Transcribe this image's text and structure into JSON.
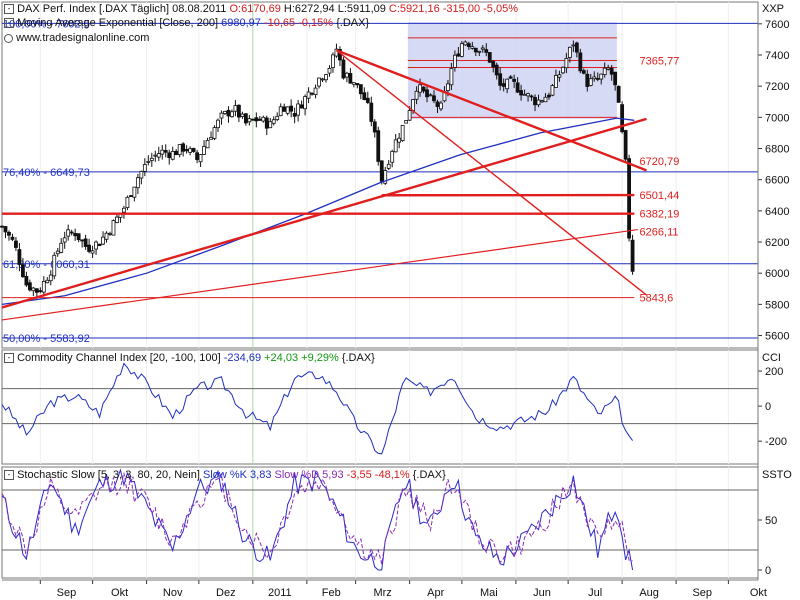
{
  "header": {
    "line1": {
      "name": "DAX Perf. Index [.DAX  Täglich]",
      "date": "08.08.2011",
      "o": "O:6170,69",
      "h": "H:6272,94",
      "l": "L:5911,09",
      "c": "C:5921,16",
      "chg": "-315,00",
      "pct": "-5,05%"
    },
    "line2": {
      "name": "Moving Average Exponential [Close, 200]",
      "val": "6980,97",
      "chg": "-10,65",
      "pct": "-0,15%",
      "sym": "{.DAX}"
    },
    "line3": "www.tradesignalonline.com",
    "axis_title": "XXP"
  },
  "cci_header": {
    "name": "Commodity Channel Index [20, -100, 100]",
    "val": "-234,69",
    "chg": "+24,03",
    "pct": "+9,29%",
    "sym": "{.DAX}",
    "axis_title": "CCI"
  },
  "stoch_header": {
    "name": "Stochastic Slow [5, 3, 3, 80, 20, Nein]",
    "k": "Slow %K 3,83",
    "d": "Slow %D 5,93",
    "chg": "-3,55",
    "pct": "-48,1%",
    "sym": "{.DAX}",
    "axis_title": "SSTO"
  },
  "colors": {
    "price": "#111111",
    "ema": "#1f2fbf",
    "trend": "#e01e1e",
    "fib": "#1f2fbf",
    "box": "#c8cdf2",
    "cci": "#1f2fbf",
    "stoch_k": "#2a2acc",
    "stoch_d": "#8a2bb8"
  },
  "chart_data": [
    {
      "type": "candlestick",
      "x": {
        "start": "2010-08-10",
        "end": "2011-10-18",
        "tick_labels": [
          "Sep",
          "Okt",
          "Nov",
          "Dez",
          "2011",
          "Feb",
          "Mrz",
          "Apr",
          "Mai",
          "Jun",
          "Jul",
          "Aug",
          "Sep",
          "Okt"
        ]
      },
      "ylim": [
        5520,
        7740
      ],
      "yticks": [
        5600,
        5800,
        6000,
        6200,
        6400,
        6600,
        6800,
        7000,
        7200,
        7400,
        7600
      ],
      "close_path": [
        [
          "2010-08-10",
          6300
        ],
        [
          "2010-08-17",
          6190
        ],
        [
          "2010-08-24",
          5930
        ],
        [
          "2010-08-31",
          5880
        ],
        [
          "2010-09-07",
          6020
        ],
        [
          "2010-09-14",
          6240
        ],
        [
          "2010-09-21",
          6260
        ],
        [
          "2010-09-28",
          6160
        ],
        [
          "2010-10-05",
          6200
        ],
        [
          "2010-10-12",
          6300
        ],
        [
          "2010-10-19",
          6420
        ],
        [
          "2010-10-26",
          6600
        ],
        [
          "2010-11-02",
          6720
        ],
        [
          "2010-11-09",
          6780
        ],
        [
          "2010-11-16",
          6770
        ],
        [
          "2010-11-23",
          6810
        ],
        [
          "2010-11-30",
          6730
        ],
        [
          "2010-12-07",
          6880
        ],
        [
          "2010-12-14",
          7000
        ],
        [
          "2010-12-21",
          7060
        ],
        [
          "2010-12-28",
          6960
        ],
        [
          "2011-01-04",
          6990
        ],
        [
          "2011-01-11",
          6950
        ],
        [
          "2011-01-18",
          7080
        ],
        [
          "2011-01-25",
          7030
        ],
        [
          "2011-02-01",
          7140
        ],
        [
          "2011-02-08",
          7250
        ],
        [
          "2011-02-15",
          7340
        ],
        [
          "2011-02-18",
          7440
        ],
        [
          "2011-02-22",
          7280
        ],
        [
          "2011-02-28",
          7230
        ],
        [
          "2011-03-07",
          7100
        ],
        [
          "2011-03-11",
          6950
        ],
        [
          "2011-03-16",
          6600
        ],
        [
          "2011-03-22",
          6800
        ],
        [
          "2011-03-29",
          6960
        ],
        [
          "2011-04-05",
          7200
        ],
        [
          "2011-04-12",
          7120
        ],
        [
          "2011-04-19",
          7060
        ],
        [
          "2011-04-26",
          7350
        ],
        [
          "2011-05-02",
          7500
        ],
        [
          "2011-05-09",
          7450
        ],
        [
          "2011-05-16",
          7400
        ],
        [
          "2011-05-23",
          7200
        ],
        [
          "2011-05-30",
          7220
        ],
        [
          "2011-06-06",
          7150
        ],
        [
          "2011-06-13",
          7100
        ],
        [
          "2011-06-20",
          7150
        ],
        [
          "2011-06-27",
          7300
        ],
        [
          "2011-07-04",
          7480
        ],
        [
          "2011-07-11",
          7220
        ],
        [
          "2011-07-18",
          7240
        ],
        [
          "2011-07-25",
          7320
        ],
        [
          "2011-07-29",
          7150
        ],
        [
          "2011-08-02",
          6800
        ],
        [
          "2011-08-04",
          6600
        ],
        [
          "2011-08-05",
          6240
        ],
        [
          "2011-08-08",
          5921
        ]
      ],
      "ema_path": [
        [
          "2010-08-10",
          5800
        ],
        [
          "2010-09-15",
          5855
        ],
        [
          "2010-11-01",
          6000
        ],
        [
          "2010-12-15",
          6180
        ],
        [
          "2011-01-31",
          6380
        ],
        [
          "2011-03-15",
          6580
        ],
        [
          "2011-04-30",
          6760
        ],
        [
          "2011-06-15",
          6900
        ],
        [
          "2011-07-29",
          6995
        ],
        [
          "2011-08-08",
          6981
        ]
      ],
      "fib_levels": [
        {
          "label": "100,00% - 7602,5",
          "value": 7602.5
        },
        {
          "label": "76,40% - 6649,73",
          "value": 6649.73
        },
        {
          "label": "61,80% - 6060,31",
          "value": 6060.31
        },
        {
          "label": "50,00% - 5583,92",
          "value": 5583.92
        }
      ],
      "price_labels": [
        {
          "label": "7365,77",
          "value": 7365.77
        },
        {
          "label": "6720,79",
          "value": 6720.79
        },
        {
          "label": "6501,44",
          "value": 6501.44
        },
        {
          "label": "6382,19",
          "value": 6382.19
        },
        {
          "label": "6266,11",
          "value": 6266.11
        },
        {
          "label": "5843,6",
          "value": 5843.6
        }
      ],
      "trend_lines": [
        {
          "from": [
            "2010-08-10",
            5780
          ],
          "to": [
            "2011-08-15",
            6990
          ],
          "width": 2.4
        },
        {
          "from": [
            "2010-08-10",
            5700
          ],
          "to": [
            "2011-08-10",
            6280
          ],
          "width": 1.2
        },
        {
          "from": [
            "2011-02-18",
            7430
          ],
          "to": [
            "2011-08-15",
            6660
          ],
          "width": 2.4
        },
        {
          "from": [
            "2011-02-18",
            7430
          ],
          "to": [
            "2011-08-15",
            5860
          ],
          "width": 1.4
        },
        {
          "from": [
            "2011-03-16",
            6500
          ],
          "to": [
            "2011-08-08",
            6501
          ],
          "width": 2.4
        },
        {
          "from": [
            "2010-08-10",
            6382
          ],
          "to": [
            "2011-08-08",
            6382
          ],
          "width": 2.4
        },
        {
          "from": [
            "2010-08-10",
            5843
          ],
          "to": [
            "2011-08-08",
            5843
          ],
          "width": 1.0
        }
      ],
      "box": {
        "x_from": "2011-03-31",
        "x_to": "2011-07-29",
        "y_from": 6990,
        "y_to": 7610
      },
      "box_lines": [
        7510,
        7365,
        7320,
        7000
      ]
    },
    {
      "type": "line",
      "name": "CCI",
      "ylim": [
        -330,
        320
      ],
      "yticks": [
        -200,
        0,
        200
      ],
      "ref_lines": [
        100,
        -100
      ],
      "path": [
        [
          "2010-08-10",
          20
        ],
        [
          "2010-08-24",
          -160
        ],
        [
          "2010-09-07",
          20
        ],
        [
          "2010-09-21",
          60
        ],
        [
          "2010-10-05",
          -40
        ],
        [
          "2010-10-19",
          250
        ],
        [
          "2010-11-02",
          120
        ],
        [
          "2010-11-16",
          -60
        ],
        [
          "2010-11-30",
          100
        ],
        [
          "2010-12-14",
          140
        ],
        [
          "2010-12-28",
          -40
        ],
        [
          "2011-01-11",
          -120
        ],
        [
          "2011-01-25",
          160
        ],
        [
          "2011-02-08",
          180
        ],
        [
          "2011-02-18",
          90
        ],
        [
          "2011-03-01",
          -100
        ],
        [
          "2011-03-16",
          -280
        ],
        [
          "2011-03-29",
          150
        ],
        [
          "2011-04-12",
          80
        ],
        [
          "2011-04-26",
          180
        ],
        [
          "2011-05-09",
          -60
        ],
        [
          "2011-05-23",
          -120
        ],
        [
          "2011-06-06",
          -80
        ],
        [
          "2011-06-20",
          -20
        ],
        [
          "2011-07-04",
          160
        ],
        [
          "2011-07-18",
          -50
        ],
        [
          "2011-07-29",
          40
        ],
        [
          "2011-08-04",
          -180
        ],
        [
          "2011-08-08",
          -235
        ]
      ]
    },
    {
      "type": "line",
      "name": "Stochastic",
      "ylim": [
        -8,
        103
      ],
      "yticks": [
        0,
        50
      ],
      "ref_lines": [
        80,
        20
      ],
      "series": [
        {
          "name": "Slow %K",
          "path": [
            [
              "2010-08-10",
              70
            ],
            [
              "2010-08-24",
              15
            ],
            [
              "2010-09-07",
              90
            ],
            [
              "2010-09-21",
              40
            ],
            [
              "2010-10-05",
              85
            ],
            [
              "2010-10-19",
              95
            ],
            [
              "2010-11-02",
              60
            ],
            [
              "2010-11-16",
              20
            ],
            [
              "2010-11-30",
              80
            ],
            [
              "2010-12-14",
              90
            ],
            [
              "2010-12-28",
              30
            ],
            [
              "2011-01-11",
              10
            ],
            [
              "2011-01-25",
              85
            ],
            [
              "2011-02-08",
              90
            ],
            [
              "2011-02-18",
              60
            ],
            [
              "2011-03-01",
              20
            ],
            [
              "2011-03-16",
              5
            ],
            [
              "2011-03-29",
              90
            ],
            [
              "2011-04-12",
              40
            ],
            [
              "2011-04-26",
              95
            ],
            [
              "2011-05-09",
              30
            ],
            [
              "2011-05-23",
              10
            ],
            [
              "2011-06-06",
              30
            ],
            [
              "2011-06-20",
              60
            ],
            [
              "2011-07-04",
              90
            ],
            [
              "2011-07-18",
              20
            ],
            [
              "2011-07-29",
              70
            ],
            [
              "2011-08-04",
              10
            ],
            [
              "2011-08-08",
              4
            ]
          ]
        },
        {
          "name": "Slow %D",
          "path": [
            [
              "2010-08-10",
              72
            ],
            [
              "2010-08-24",
              20
            ],
            [
              "2010-09-07",
              80
            ],
            [
              "2010-09-21",
              50
            ],
            [
              "2010-10-05",
              80
            ],
            [
              "2010-10-19",
              90
            ],
            [
              "2010-11-02",
              65
            ],
            [
              "2010-11-16",
              28
            ],
            [
              "2010-11-30",
              72
            ],
            [
              "2010-12-14",
              86
            ],
            [
              "2010-12-28",
              38
            ],
            [
              "2011-01-11",
              15
            ],
            [
              "2011-01-25",
              78
            ],
            [
              "2011-02-08",
              88
            ],
            [
              "2011-02-18",
              66
            ],
            [
              "2011-03-01",
              28
            ],
            [
              "2011-03-16",
              8
            ],
            [
              "2011-03-29",
              82
            ],
            [
              "2011-04-12",
              48
            ],
            [
              "2011-04-26",
              90
            ],
            [
              "2011-05-09",
              38
            ],
            [
              "2011-05-23",
              15
            ],
            [
              "2011-06-06",
              26
            ],
            [
              "2011-06-20",
              55
            ],
            [
              "2011-07-04",
              85
            ],
            [
              "2011-07-18",
              28
            ],
            [
              "2011-07-29",
              62
            ],
            [
              "2011-08-04",
              16
            ],
            [
              "2011-08-08",
              6
            ]
          ]
        }
      ]
    }
  ]
}
